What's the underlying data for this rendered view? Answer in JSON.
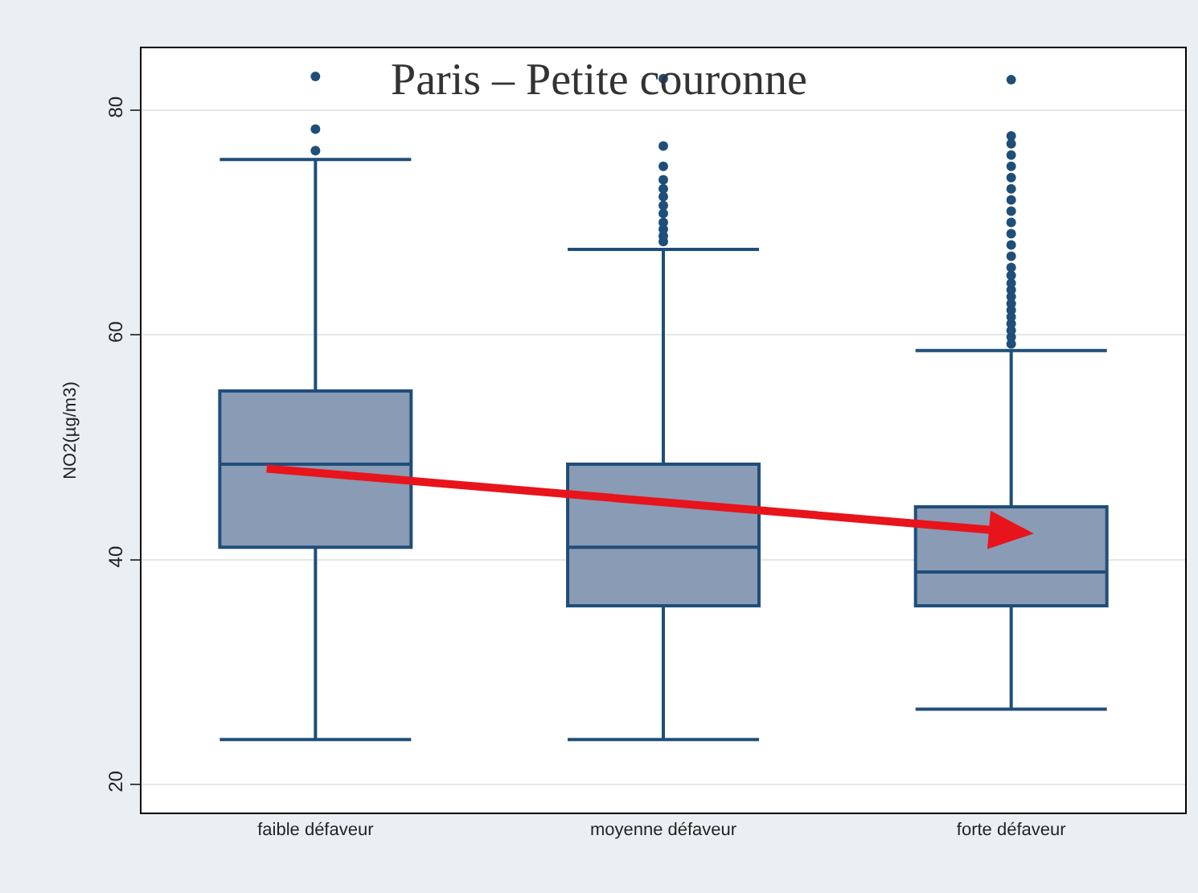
{
  "chart_data": {
    "type": "box",
    "title": "Paris – Petite couronne",
    "ylabel": "NO2(µg/m3)",
    "categories": [
      "faible défaveur",
      "moyenne défaveur",
      "forte défaveur"
    ],
    "color": "#8a9bb5",
    "boxes": [
      {
        "low": 24,
        "q1": 41.1,
        "median": 48.5,
        "q3": 55,
        "high": 75.6,
        "outliers": [
          76.4,
          78.3,
          83
        ]
      },
      {
        "low": 24,
        "q1": 35.9,
        "median": 41.1,
        "q3": 48.5,
        "high": 67.6,
        "outliers": [
          68.3,
          68.8,
          69.4,
          70,
          70.8,
          71.5,
          72.3,
          73,
          73.8,
          75,
          76.8,
          82.8
        ]
      },
      {
        "low": 26.7,
        "q1": 35.9,
        "median": 38.9,
        "q3": 44.7,
        "high": 58.6,
        "outliers": [
          59.2,
          59.8,
          60.4,
          61,
          61.6,
          62.2,
          62.8,
          63.4,
          64,
          64.6,
          65.3,
          66,
          67,
          68,
          69,
          70,
          71,
          72,
          73,
          74,
          75,
          76,
          77,
          77.7,
          82.7
        ]
      }
    ],
    "ylim": [
      17.5,
      85.5
    ],
    "yticks": [
      20,
      40,
      60,
      80
    ],
    "grid": "y"
  }
}
